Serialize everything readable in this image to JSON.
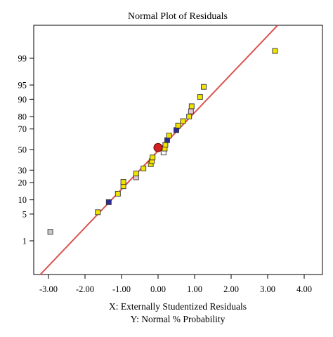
{
  "chart_data": {
    "type": "scatter",
    "title": "Normal Plot of Residuals",
    "xlabel": "X: Externally Studentized Residuals",
    "ylabel": "Y: Normal % Probability",
    "xlim": [
      -3.4,
      4.4
    ],
    "x_ticks": [
      -3,
      -2,
      -1,
      0,
      1,
      2,
      3,
      4
    ],
    "x_tick_labels": [
      "-3.00",
      "-2.00",
      "-1.00",
      "0.00",
      "1.00",
      "2.00",
      "3.00",
      "4.00"
    ],
    "y_scale": "normal-probability",
    "y_ticks": [
      1,
      5,
      10,
      20,
      30,
      50,
      70,
      80,
      90,
      95,
      99
    ],
    "y_tick_labels": [
      "1",
      "5",
      "10",
      "20",
      "30",
      "50",
      "70",
      "80",
      "90",
      "95",
      "99"
    ],
    "grid": false,
    "reference_line": {
      "x": [
        -3.0,
        3.4
      ],
      "y": [
        0.15,
        99.95
      ],
      "color": "#d9534f"
    },
    "colors": {
      "yellow": "#f0e300",
      "blue": "#2a2a9a",
      "white": "#ffffff",
      "pink": "#e8c8d8",
      "gray": "#c9c9c9",
      "center": "#d42020"
    },
    "points": [
      {
        "x": -2.95,
        "y": 1.8,
        "color": "gray"
      },
      {
        "x": -1.65,
        "y": 5.5,
        "color": "yellow"
      },
      {
        "x": -1.35,
        "y": 9.0,
        "color": "blue"
      },
      {
        "x": -1.1,
        "y": 13.0,
        "color": "yellow"
      },
      {
        "x": -0.95,
        "y": 17.5,
        "color": "yellow"
      },
      {
        "x": -0.95,
        "y": 20.5,
        "color": "yellow"
      },
      {
        "x": -0.6,
        "y": 24.0,
        "color": "pink"
      },
      {
        "x": -0.6,
        "y": 27.0,
        "color": "yellow"
      },
      {
        "x": -0.4,
        "y": 31.5,
        "color": "yellow"
      },
      {
        "x": -0.2,
        "y": 35.5,
        "color": "yellow"
      },
      {
        "x": -0.17,
        "y": 38.5,
        "color": "yellow"
      },
      {
        "x": -0.15,
        "y": 42.0,
        "color": "yellow"
      },
      {
        "x": 0.15,
        "y": 47.0,
        "color": "white"
      },
      {
        "x": 0.18,
        "y": 51.0,
        "color": "yellow"
      },
      {
        "x": 0.2,
        "y": 55.0,
        "color": "yellow"
      },
      {
        "x": 0.25,
        "y": 59.5,
        "color": "blue"
      },
      {
        "x": 0.3,
        "y": 64.0,
        "color": "yellow"
      },
      {
        "x": 0.5,
        "y": 69.0,
        "color": "blue"
      },
      {
        "x": 0.55,
        "y": 73.0,
        "color": "yellow"
      },
      {
        "x": 0.68,
        "y": 76.5,
        "color": "yellow"
      },
      {
        "x": 0.85,
        "y": 80.0,
        "color": "yellow"
      },
      {
        "x": 0.9,
        "y": 83.5,
        "color": "pink"
      },
      {
        "x": 0.92,
        "y": 86.5,
        "color": "yellow"
      },
      {
        "x": 1.15,
        "y": 91.0,
        "color": "yellow"
      },
      {
        "x": 1.25,
        "y": 94.5,
        "color": "yellow"
      },
      {
        "x": 3.2,
        "y": 99.4,
        "color": "yellow"
      }
    ],
    "center_point": {
      "x": 0.0,
      "y": 52.0,
      "color": "center"
    }
  }
}
